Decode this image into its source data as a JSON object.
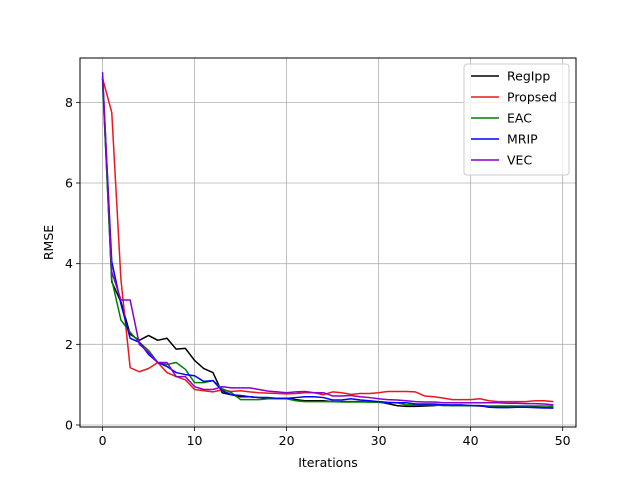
{
  "chart_data": {
    "type": "line",
    "title": "",
    "xlabel": "Iterations",
    "ylabel": "RMSE",
    "xlim": [
      -2.45,
      51.45
    ],
    "ylim": [
      -0.05,
      9.1
    ],
    "xticks": [
      0,
      10,
      20,
      30,
      40,
      50
    ],
    "yticks": [
      0,
      2,
      4,
      6,
      8
    ],
    "grid": true,
    "legend_position": "top-right",
    "x": [
      0,
      1,
      2,
      3,
      4,
      5,
      6,
      7,
      8,
      9,
      10,
      11,
      12,
      13,
      14,
      15,
      16,
      17,
      18,
      19,
      20,
      21,
      22,
      23,
      24,
      25,
      26,
      27,
      28,
      29,
      30,
      31,
      32,
      33,
      34,
      35,
      36,
      37,
      38,
      39,
      40,
      41,
      42,
      43,
      44,
      45,
      46,
      47,
      48,
      49
    ],
    "series": [
      {
        "name": "RegIpp",
        "color": "#000000",
        "values": [
          8.6,
          3.55,
          3.05,
          2.25,
          2.1,
          2.22,
          2.1,
          2.15,
          1.88,
          1.9,
          1.6,
          1.4,
          1.3,
          0.8,
          0.75,
          0.7,
          0.7,
          0.68,
          0.66,
          0.66,
          0.66,
          0.63,
          0.6,
          0.6,
          0.6,
          0.58,
          0.58,
          0.58,
          0.58,
          0.57,
          0.57,
          0.53,
          0.48,
          0.46,
          0.46,
          0.47,
          0.48,
          0.5,
          0.48,
          0.48,
          0.48,
          0.47,
          0.46,
          0.45,
          0.44,
          0.45,
          0.44,
          0.44,
          0.43,
          0.42
        ]
      },
      {
        "name": "Propsed",
        "color": "#e8191c",
        "values": [
          8.6,
          7.75,
          3.6,
          1.42,
          1.32,
          1.4,
          1.55,
          1.3,
          1.2,
          1.12,
          0.88,
          0.85,
          0.82,
          0.87,
          0.83,
          0.85,
          0.82,
          0.8,
          0.79,
          0.78,
          0.77,
          0.78,
          0.8,
          0.8,
          0.75,
          0.82,
          0.8,
          0.76,
          0.78,
          0.78,
          0.8,
          0.83,
          0.83,
          0.83,
          0.82,
          0.72,
          0.7,
          0.67,
          0.63,
          0.63,
          0.63,
          0.65,
          0.6,
          0.58,
          0.58,
          0.58,
          0.58,
          0.6,
          0.6,
          0.58
        ]
      },
      {
        "name": "EAC",
        "color": "#008000",
        "values": [
          8.5,
          3.6,
          2.6,
          2.3,
          2.05,
          1.85,
          1.55,
          1.5,
          1.55,
          1.38,
          1.05,
          1.05,
          1.1,
          0.9,
          0.8,
          0.63,
          0.63,
          0.63,
          0.65,
          0.65,
          0.65,
          0.6,
          0.58,
          0.58,
          0.58,
          0.58,
          0.57,
          0.57,
          0.57,
          0.57,
          0.56,
          0.55,
          0.55,
          0.5,
          0.5,
          0.5,
          0.5,
          0.48,
          0.48,
          0.48,
          0.48,
          0.48,
          0.47,
          0.47,
          0.47,
          0.47,
          0.47,
          0.47,
          0.47,
          0.46
        ]
      },
      {
        "name": "MRIP",
        "color": "#0000ff",
        "values": [
          8.65,
          4.05,
          3.0,
          2.15,
          2.05,
          1.75,
          1.55,
          1.45,
          1.3,
          1.25,
          1.22,
          1.08,
          1.1,
          0.85,
          0.75,
          0.73,
          0.7,
          0.68,
          0.68,
          0.66,
          0.66,
          0.68,
          0.7,
          0.7,
          0.68,
          0.62,
          0.62,
          0.65,
          0.62,
          0.6,
          0.58,
          0.56,
          0.55,
          0.55,
          0.52,
          0.52,
          0.52,
          0.5,
          0.5,
          0.5,
          0.48,
          0.48,
          0.44,
          0.43,
          0.43,
          0.44,
          0.44,
          0.43,
          0.42,
          0.42
        ]
      },
      {
        "name": "VEC",
        "color": "#8800cc",
        "values": [
          8.75,
          3.8,
          3.1,
          3.1,
          2.0,
          1.8,
          1.55,
          1.55,
          1.2,
          1.2,
          0.95,
          0.88,
          0.88,
          0.95,
          0.92,
          0.92,
          0.92,
          0.88,
          0.84,
          0.82,
          0.8,
          0.82,
          0.83,
          0.8,
          0.8,
          0.72,
          0.72,
          0.73,
          0.7,
          0.68,
          0.65,
          0.63,
          0.62,
          0.6,
          0.58,
          0.57,
          0.57,
          0.55,
          0.55,
          0.55,
          0.55,
          0.55,
          0.55,
          0.55,
          0.54,
          0.54,
          0.53,
          0.53,
          0.52,
          0.5
        ]
      }
    ]
  }
}
